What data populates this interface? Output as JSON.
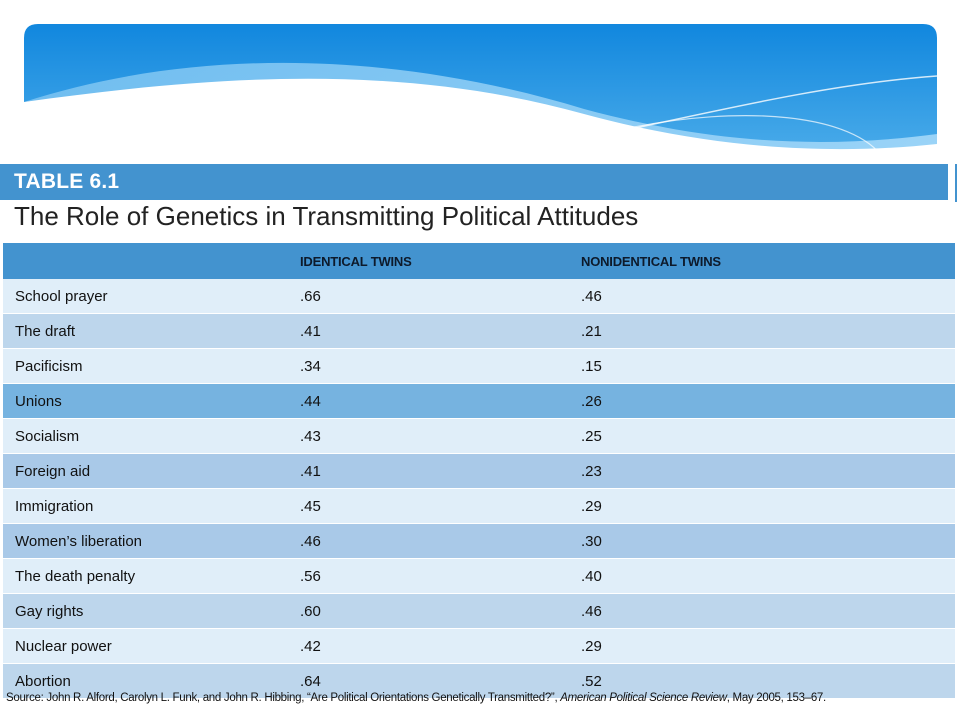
{
  "table_label": "TABLE 6.1",
  "table_title": "The Role of Genetics in Transmitting Political Attitudes",
  "columns": [
    "",
    "IDENTICAL TWINS",
    "NONIDENTICAL TWINS"
  ],
  "rows": [
    {
      "attitude": "School prayer",
      "identical": ".66",
      "nonidentical": ".46"
    },
    {
      "attitude": "The draft",
      "identical": ".41",
      "nonidentical": ".21"
    },
    {
      "attitude": "Pacificism",
      "identical": ".34",
      "nonidentical": ".15"
    },
    {
      "attitude": "Unions",
      "identical": ".44",
      "nonidentical": ".26"
    },
    {
      "attitude": "Socialism",
      "identical": ".43",
      "nonidentical": ".25"
    },
    {
      "attitude": "Foreign aid",
      "identical": ".41",
      "nonidentical": ".23"
    },
    {
      "attitude": "Immigration",
      "identical": ".45",
      "nonidentical": ".29"
    },
    {
      "attitude": "Women’s liberation",
      "identical": ".46",
      "nonidentical": ".30"
    },
    {
      "attitude": "The death penalty",
      "identical": ".56",
      "nonidentical": ".40"
    },
    {
      "attitude": "Gay rights",
      "identical": ".60",
      "nonidentical": ".46"
    },
    {
      "attitude": "Nuclear power",
      "identical": ".42",
      "nonidentical": ".29"
    },
    {
      "attitude": "Abortion",
      "identical": ".64",
      "nonidentical": ".52"
    }
  ],
  "source": {
    "prefix": "Source: John R. Alford, Carolyn L. Funk, and John R. Hibbing, “Are Political Orientations Genetically Transmitted?”, ",
    "journal": "American Political Science Review",
    "suffix": ", May 2005, 153–67."
  },
  "colors": {
    "header_blue": "#4393cf",
    "banner_blue": "#1a8ee0",
    "row_light": "#e0eef9",
    "row_mid": "#bdd6ec",
    "row_dark": "#76b3e0"
  }
}
